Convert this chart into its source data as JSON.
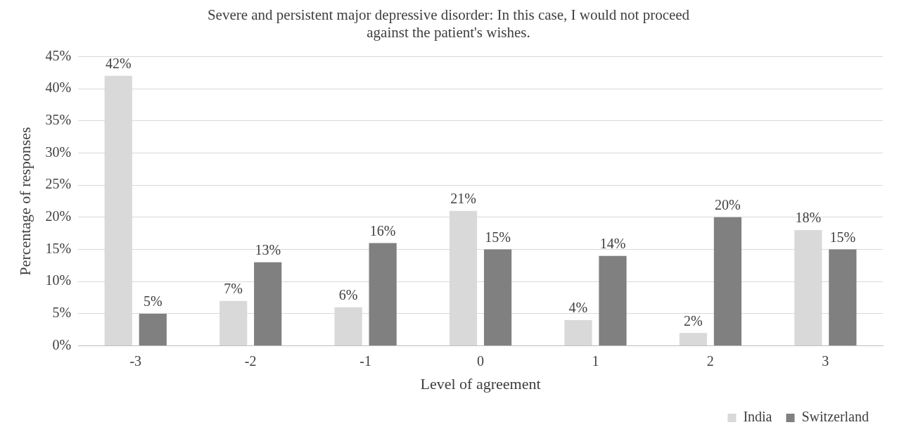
{
  "chart_data": {
    "type": "bar",
    "title": "Severe and persistent major depressive disorder: In this case, I would not proceed\nagainst the patient's wishes.",
    "xlabel": "Level of agreement",
    "ylabel": "Percentage of responses",
    "categories": [
      "-3",
      "-2",
      "-1",
      "0",
      "1",
      "2",
      "3"
    ],
    "series": [
      {
        "name": "India",
        "color": "#d9d9d9",
        "values": [
          42,
          7,
          6,
          21,
          4,
          2,
          18
        ],
        "value_labels": [
          "42%",
          "7%",
          "6%",
          "21%",
          "4%",
          "2%",
          "18%"
        ]
      },
      {
        "name": "Switzerland",
        "color": "#808080",
        "values": [
          5,
          13,
          16,
          15,
          14,
          20,
          15
        ],
        "value_labels": [
          "5%",
          "13%",
          "16%",
          "15%",
          "14%",
          "20%",
          "15%"
        ]
      }
    ],
    "ylim": [
      0,
      45
    ],
    "yticks": [
      {
        "value": 0,
        "label": "0%"
      },
      {
        "value": 5,
        "label": "5%"
      },
      {
        "value": 10,
        "label": "10%"
      },
      {
        "value": 15,
        "label": "15%"
      },
      {
        "value": 20,
        "label": "20%"
      },
      {
        "value": 25,
        "label": "25%"
      },
      {
        "value": 30,
        "label": "30%"
      },
      {
        "value": 35,
        "label": "35%"
      },
      {
        "value": 40,
        "label": "40%"
      },
      {
        "value": 45,
        "label": "45%"
      }
    ],
    "grid": "y",
    "legend": "bottom right"
  }
}
